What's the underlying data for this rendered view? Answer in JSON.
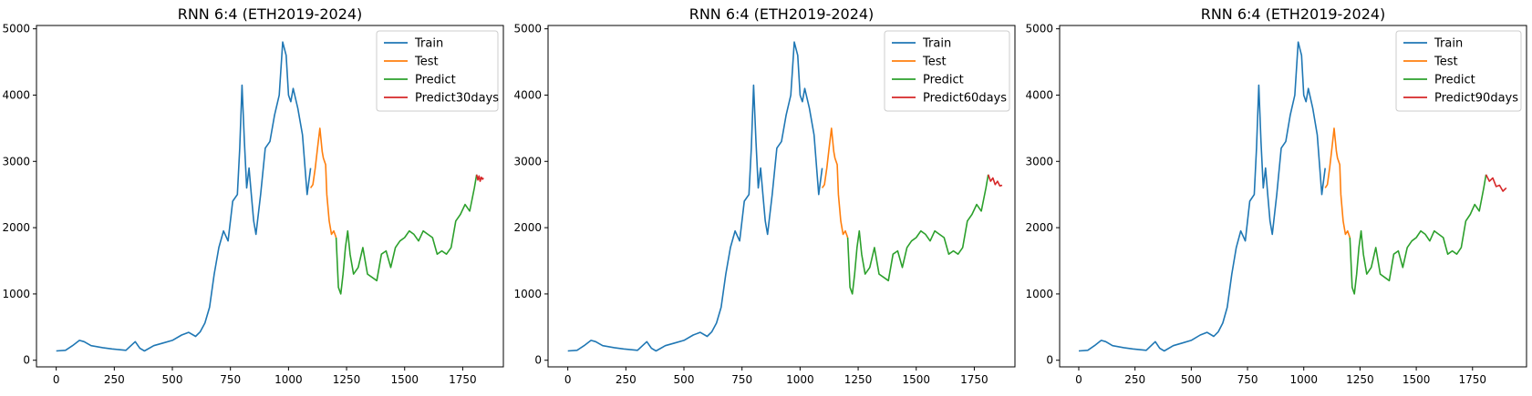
{
  "chart_data": [
    {
      "type": "line",
      "title": "RNN 6:4 (ETH2019-2024)",
      "xlabel": "",
      "ylabel": "",
      "xlim": [
        -85,
        1925
      ],
      "ylim": [
        -100,
        5050
      ],
      "xticks": [
        0,
        250,
        500,
        750,
        1000,
        1250,
        1500,
        1750
      ],
      "yticks": [
        0,
        1000,
        2000,
        3000,
        4000,
        5000
      ],
      "legend_position": "top-right",
      "grid": false,
      "series": [
        {
          "name": "Train",
          "color": "#1f77b4",
          "x": [
            0,
            40,
            70,
            100,
            120,
            150,
            200,
            240,
            270,
            300,
            340,
            360,
            380,
            420,
            460,
            500,
            540,
            570,
            600,
            620,
            640,
            660,
            680,
            700,
            720,
            740,
            760,
            780,
            790,
            800,
            810,
            820,
            830,
            840,
            850,
            860,
            880,
            900,
            920,
            940,
            960,
            975,
            990,
            1000,
            1010,
            1020,
            1040,
            1060,
            1080,
            1095
          ],
          "y": [
            140,
            150,
            220,
            300,
            280,
            220,
            190,
            170,
            160,
            150,
            280,
            180,
            140,
            220,
            260,
            300,
            380,
            420,
            360,
            430,
            560,
            800,
            1300,
            1700,
            1950,
            1800,
            2400,
            2500,
            3200,
            4150,
            3300,
            2600,
            2900,
            2500,
            2100,
            1900,
            2500,
            3200,
            3300,
            3700,
            4000,
            4800,
            4600,
            4000,
            3900,
            4100,
            3800,
            3400,
            2500,
            2900
          ]
        },
        {
          "name": "Test",
          "color": "#ff7f0e",
          "x": [
            1095,
            1105,
            1115,
            1125,
            1135,
            1145,
            1150,
            1160,
            1165,
            1175,
            1185,
            1195,
            1205
          ],
          "y": [
            2600,
            2650,
            2900,
            3200,
            3500,
            3150,
            3050,
            2950,
            2500,
            2100,
            1900,
            1950,
            1850
          ]
        },
        {
          "name": "Predict",
          "color": "#2ca02c",
          "x": [
            1205,
            1215,
            1225,
            1235,
            1245,
            1255,
            1265,
            1280,
            1300,
            1320,
            1340,
            1360,
            1380,
            1400,
            1420,
            1440,
            1460,
            1480,
            1500,
            1520,
            1540,
            1560,
            1580,
            1600,
            1620,
            1640,
            1660,
            1680,
            1700,
            1720,
            1740,
            1760,
            1780,
            1800,
            1810
          ],
          "y": [
            1850,
            1100,
            1000,
            1300,
            1700,
            1950,
            1600,
            1300,
            1400,
            1700,
            1300,
            1250,
            1200,
            1600,
            1650,
            1400,
            1700,
            1800,
            1850,
            1950,
            1900,
            1800,
            1950,
            1900,
            1850,
            1600,
            1650,
            1600,
            1700,
            2100,
            2200,
            2350,
            2250,
            2600,
            2800
          ]
        },
        {
          "name": "Predict30days",
          "color": "#d62728",
          "x": [
            1810,
            1815,
            1820,
            1825,
            1830,
            1835,
            1840
          ],
          "y": [
            2800,
            2720,
            2780,
            2700,
            2760,
            2730,
            2750
          ]
        }
      ]
    },
    {
      "type": "line",
      "title": "RNN 6:4 (ETH2019-2024)",
      "xlabel": "",
      "ylabel": "",
      "xlim": [
        -85,
        1925
      ],
      "ylim": [
        -100,
        5050
      ],
      "xticks": [
        0,
        250,
        500,
        750,
        1000,
        1250,
        1500,
        1750
      ],
      "yticks": [
        0,
        1000,
        2000,
        3000,
        4000,
        5000
      ],
      "legend_position": "top-right",
      "grid": false,
      "series": [
        {
          "name": "Train",
          "color": "#1f77b4",
          "x": [
            0,
            40,
            70,
            100,
            120,
            150,
            200,
            240,
            270,
            300,
            340,
            360,
            380,
            420,
            460,
            500,
            540,
            570,
            600,
            620,
            640,
            660,
            680,
            700,
            720,
            740,
            760,
            780,
            790,
            800,
            810,
            820,
            830,
            840,
            850,
            860,
            880,
            900,
            920,
            940,
            960,
            975,
            990,
            1000,
            1010,
            1020,
            1040,
            1060,
            1080,
            1095
          ],
          "y": [
            140,
            150,
            220,
            300,
            280,
            220,
            190,
            170,
            160,
            150,
            280,
            180,
            140,
            220,
            260,
            300,
            380,
            420,
            360,
            430,
            560,
            800,
            1300,
            1700,
            1950,
            1800,
            2400,
            2500,
            3200,
            4150,
            3300,
            2600,
            2900,
            2500,
            2100,
            1900,
            2500,
            3200,
            3300,
            3700,
            4000,
            4800,
            4600,
            4000,
            3900,
            4100,
            3800,
            3400,
            2500,
            2900
          ]
        },
        {
          "name": "Test",
          "color": "#ff7f0e",
          "x": [
            1095,
            1105,
            1115,
            1125,
            1135,
            1145,
            1150,
            1160,
            1165,
            1175,
            1185,
            1195,
            1205
          ],
          "y": [
            2600,
            2650,
            2900,
            3200,
            3500,
            3150,
            3050,
            2950,
            2500,
            2100,
            1900,
            1950,
            1850
          ]
        },
        {
          "name": "Predict",
          "color": "#2ca02c",
          "x": [
            1205,
            1215,
            1225,
            1235,
            1245,
            1255,
            1265,
            1280,
            1300,
            1320,
            1340,
            1360,
            1380,
            1400,
            1420,
            1440,
            1460,
            1480,
            1500,
            1520,
            1540,
            1560,
            1580,
            1600,
            1620,
            1640,
            1660,
            1680,
            1700,
            1720,
            1740,
            1760,
            1780,
            1800,
            1810
          ],
          "y": [
            1850,
            1100,
            1000,
            1300,
            1700,
            1950,
            1600,
            1300,
            1400,
            1700,
            1300,
            1250,
            1200,
            1600,
            1650,
            1400,
            1700,
            1800,
            1850,
            1950,
            1900,
            1800,
            1950,
            1900,
            1850,
            1600,
            1650,
            1600,
            1700,
            2100,
            2200,
            2350,
            2250,
            2600,
            2800
          ]
        },
        {
          "name": "Predict60days",
          "color": "#d62728",
          "x": [
            1810,
            1820,
            1830,
            1840,
            1850,
            1860,
            1870
          ],
          "y": [
            2800,
            2700,
            2750,
            2650,
            2700,
            2630,
            2640
          ]
        }
      ]
    },
    {
      "type": "line",
      "title": "RNN 6:4 (ETH2019-2024)",
      "xlabel": "",
      "ylabel": "",
      "xlim": [
        -85,
        1990
      ],
      "ylim": [
        -100,
        5050
      ],
      "xticks": [
        0,
        250,
        500,
        750,
        1000,
        1250,
        1500,
        1750
      ],
      "yticks": [
        0,
        1000,
        2000,
        3000,
        4000,
        5000
      ],
      "legend_position": "top-right",
      "grid": false,
      "series": [
        {
          "name": "Train",
          "color": "#1f77b4",
          "x": [
            0,
            40,
            70,
            100,
            120,
            150,
            200,
            240,
            270,
            300,
            340,
            360,
            380,
            420,
            460,
            500,
            540,
            570,
            600,
            620,
            640,
            660,
            680,
            700,
            720,
            740,
            760,
            780,
            790,
            800,
            810,
            820,
            830,
            840,
            850,
            860,
            880,
            900,
            920,
            940,
            960,
            975,
            990,
            1000,
            1010,
            1020,
            1040,
            1060,
            1080,
            1095
          ],
          "y": [
            140,
            150,
            220,
            300,
            280,
            220,
            190,
            170,
            160,
            150,
            280,
            180,
            140,
            220,
            260,
            300,
            380,
            420,
            360,
            430,
            560,
            800,
            1300,
            1700,
            1950,
            1800,
            2400,
            2500,
            3200,
            4150,
            3300,
            2600,
            2900,
            2500,
            2100,
            1900,
            2500,
            3200,
            3300,
            3700,
            4000,
            4800,
            4600,
            4000,
            3900,
            4100,
            3800,
            3400,
            2500,
            2900
          ]
        },
        {
          "name": "Test",
          "color": "#ff7f0e",
          "x": [
            1095,
            1105,
            1115,
            1125,
            1135,
            1145,
            1150,
            1160,
            1165,
            1175,
            1185,
            1195,
            1205
          ],
          "y": [
            2600,
            2650,
            2900,
            3200,
            3500,
            3150,
            3050,
            2950,
            2500,
            2100,
            1900,
            1950,
            1850
          ]
        },
        {
          "name": "Predict",
          "color": "#2ca02c",
          "x": [
            1205,
            1215,
            1225,
            1235,
            1245,
            1255,
            1265,
            1280,
            1300,
            1320,
            1340,
            1360,
            1380,
            1400,
            1420,
            1440,
            1460,
            1480,
            1500,
            1520,
            1540,
            1560,
            1580,
            1600,
            1620,
            1640,
            1660,
            1680,
            1700,
            1720,
            1740,
            1760,
            1780,
            1800,
            1810
          ],
          "y": [
            1850,
            1100,
            1000,
            1300,
            1700,
            1950,
            1600,
            1300,
            1400,
            1700,
            1300,
            1250,
            1200,
            1600,
            1650,
            1400,
            1700,
            1800,
            1850,
            1950,
            1900,
            1800,
            1950,
            1900,
            1850,
            1600,
            1650,
            1600,
            1700,
            2100,
            2200,
            2350,
            2250,
            2600,
            2800
          ]
        },
        {
          "name": "Predict90days",
          "color": "#d62728",
          "x": [
            1810,
            1825,
            1840,
            1855,
            1870,
            1885,
            1900
          ],
          "y": [
            2800,
            2700,
            2750,
            2620,
            2640,
            2550,
            2600
          ]
        }
      ]
    }
  ]
}
